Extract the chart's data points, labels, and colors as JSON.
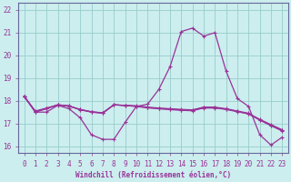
{
  "xlabel": "Windchill (Refroidissement éolien,°C)",
  "background_color": "#cceeee",
  "grid_color": "#99cccc",
  "line_color": "#993399",
  "spine_color": "#666699",
  "x_ticks": [
    0,
    1,
    2,
    3,
    4,
    5,
    6,
    7,
    8,
    9,
    10,
    11,
    12,
    13,
    14,
    15,
    16,
    17,
    18,
    19,
    20,
    21,
    22,
    23
  ],
  "y_ticks": [
    16,
    17,
    18,
    19,
    20,
    21,
    22
  ],
  "ylim": [
    15.7,
    22.3
  ],
  "xlim": [
    -0.5,
    23.5
  ],
  "series1": [
    18.2,
    17.5,
    17.5,
    17.8,
    17.65,
    17.25,
    16.5,
    16.3,
    16.3,
    17.05,
    17.75,
    17.85,
    18.5,
    19.5,
    21.05,
    21.2,
    20.85,
    21.0,
    19.3,
    18.1,
    17.75,
    16.5,
    16.05,
    16.4
  ],
  "series2": [
    18.2,
    17.5,
    17.65,
    17.82,
    17.78,
    17.6,
    17.5,
    17.45,
    17.82,
    17.8,
    17.78,
    17.72,
    17.68,
    17.65,
    17.62,
    17.6,
    17.72,
    17.72,
    17.65,
    17.55,
    17.45,
    17.18,
    16.95,
    16.72
  ],
  "series3": [
    18.2,
    17.55,
    17.68,
    17.82,
    17.76,
    17.62,
    17.52,
    17.47,
    17.83,
    17.79,
    17.75,
    17.69,
    17.65,
    17.61,
    17.58,
    17.56,
    17.68,
    17.68,
    17.62,
    17.52,
    17.42,
    17.15,
    16.9,
    16.67
  ],
  "series4": [
    18.2,
    17.52,
    17.66,
    17.82,
    17.77,
    17.61,
    17.51,
    17.46,
    17.82,
    17.79,
    17.76,
    17.7,
    17.66,
    17.63,
    17.6,
    17.58,
    17.7,
    17.7,
    17.63,
    17.53,
    17.43,
    17.16,
    16.92,
    16.69
  ],
  "tick_fontsize": 5.5,
  "xlabel_fontsize": 5.5
}
